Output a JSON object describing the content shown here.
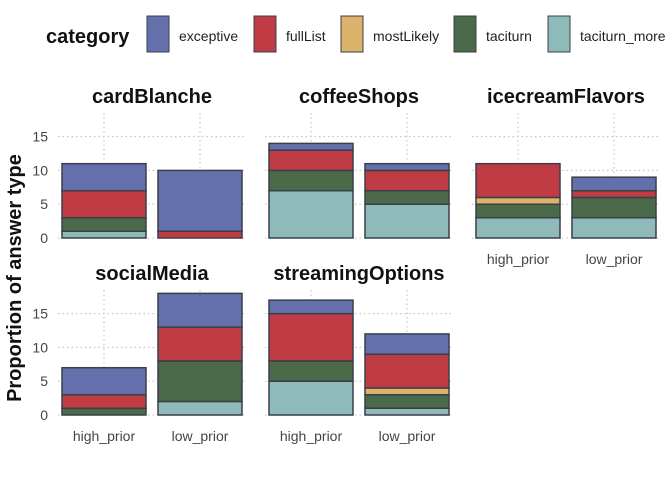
{
  "chart_data": {
    "type": "bar",
    "stacked": true,
    "faceted": true,
    "ylabel": "Proportion of answer type",
    "ylim": [
      0,
      18.5
    ],
    "yticks": [
      0,
      5,
      10,
      15
    ],
    "grid": "dotted",
    "legend": {
      "title": "category",
      "position": "top",
      "items": [
        {
          "label": "exceptive",
          "color": "#6470ab"
        },
        {
          "label": "fullList",
          "color": "#bf3c45"
        },
        {
          "label": "mostLikely",
          "color": "#ddb36b"
        },
        {
          "label": "taciturn",
          "color": "#4a6a49"
        },
        {
          "label": "taciturn_more",
          "color": "#8ebbb9"
        }
      ]
    },
    "categories": [
      "high_prior",
      "low_prior"
    ],
    "facets": [
      {
        "name": "cardBlanche",
        "bars": [
          {
            "x": "high_prior",
            "values": {
              "taciturn_more": 1,
              "taciturn": 2,
              "mostLikely": 0,
              "fullList": 4,
              "exceptive": 4
            }
          },
          {
            "x": "low_prior",
            "values": {
              "taciturn_more": 0,
              "taciturn": 0,
              "mostLikely": 0,
              "fullList": 1,
              "exceptive": 9
            }
          }
        ]
      },
      {
        "name": "coffeeShops",
        "bars": [
          {
            "x": "high_prior",
            "values": {
              "taciturn_more": 7,
              "taciturn": 3,
              "mostLikely": 0,
              "fullList": 3,
              "exceptive": 1
            }
          },
          {
            "x": "low_prior",
            "values": {
              "taciturn_more": 5,
              "taciturn": 2,
              "mostLikely": 0,
              "fullList": 3,
              "exceptive": 1
            }
          }
        ]
      },
      {
        "name": "icecreamFlavors",
        "bars": [
          {
            "x": "high_prior",
            "values": {
              "taciturn_more": 3,
              "taciturn": 2,
              "mostLikely": 1,
              "fullList": 5,
              "exceptive": 0
            }
          },
          {
            "x": "low_prior",
            "values": {
              "taciturn_more": 3,
              "taciturn": 3,
              "mostLikely": 0,
              "fullList": 1,
              "exceptive": 2
            }
          }
        ]
      },
      {
        "name": "socialMedia",
        "bars": [
          {
            "x": "high_prior",
            "values": {
              "taciturn_more": 0,
              "taciturn": 1,
              "mostLikely": 0,
              "fullList": 2,
              "exceptive": 4
            }
          },
          {
            "x": "low_prior",
            "values": {
              "taciturn_more": 2,
              "taciturn": 6,
              "mostLikely": 0,
              "fullList": 5,
              "exceptive": 5
            }
          }
        ]
      },
      {
        "name": "streamingOptions",
        "bars": [
          {
            "x": "high_prior",
            "values": {
              "taciturn_more": 5,
              "taciturn": 3,
              "mostLikely": 0,
              "fullList": 7,
              "exceptive": 2
            }
          },
          {
            "x": "low_prior",
            "values": {
              "taciturn_more": 1,
              "taciturn": 2,
              "mostLikely": 1,
              "fullList": 5,
              "exceptive": 3
            }
          }
        ]
      }
    ]
  }
}
